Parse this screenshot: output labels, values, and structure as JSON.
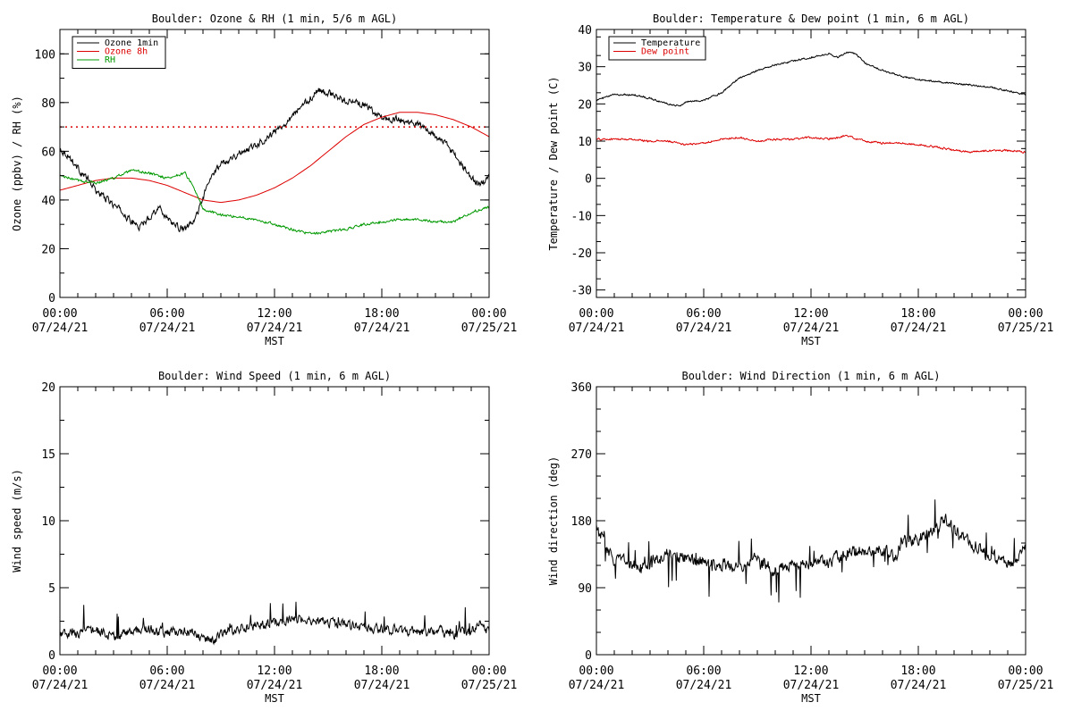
{
  "charts": [
    {
      "key": "ozone",
      "title": "Boulder: Ozone & RH (1 min, 5/6 m AGL)",
      "ylabel": "Ozone (ppbv) / RH (%)",
      "xlabel": "MST",
      "legend": [
        "Ozone 1min",
        "Ozone 8h",
        "RH"
      ]
    },
    {
      "key": "temp",
      "title": "Boulder: Temperature & Dew point (1 min, 6 m AGL)",
      "ylabel": "Temperature / Dew point (C)",
      "xlabel": "MST",
      "legend": [
        "Temperature",
        "Dew point"
      ]
    },
    {
      "key": "wspd",
      "title": "Boulder: Wind Speed (1 min, 6 m AGL)",
      "ylabel": "Wind speed (m/s)",
      "xlabel": "MST",
      "legend": []
    },
    {
      "key": "wdir",
      "title": "Boulder: Wind Direction (1 min, 6 m AGL)",
      "ylabel": "Wind direction (deg)",
      "xlabel": "MST",
      "legend": []
    }
  ],
  "chart_data": [
    {
      "type": "line",
      "title": "Boulder: Ozone & RH (1 min, 5/6 m AGL)",
      "xlabel": "MST",
      "ylabel": "Ozone (ppbv) / RH (%)",
      "xlim": [
        0,
        24
      ],
      "ylim": [
        0,
        110
      ],
      "xticks": [
        0,
        6,
        12,
        18,
        24
      ],
      "xtick_labels": [
        [
          "00:00",
          "07/24/21"
        ],
        [
          "06:00",
          "07/24/21"
        ],
        [
          "12:00",
          "07/24/21"
        ],
        [
          "18:00",
          "07/24/21"
        ],
        [
          "00:00",
          "07/25/21"
        ]
      ],
      "yticks": [
        0,
        20,
        40,
        60,
        80,
        100
      ],
      "grid": false,
      "legend_position": "top-left",
      "reference_line": {
        "y": 70,
        "color": "#dd0000",
        "style": "dotted"
      },
      "series": [
        {
          "name": "Ozone 1min",
          "color": "#000000",
          "x": [
            0,
            0.5,
            1,
            1.5,
            2,
            2.5,
            3,
            3.5,
            4,
            4.5,
            5,
            5.5,
            6,
            6.5,
            7,
            7.5,
            8,
            8.5,
            9,
            9.5,
            10,
            10.5,
            11,
            11.5,
            12,
            12.5,
            13,
            13.5,
            14,
            14.5,
            15,
            15.5,
            16,
            16.5,
            17,
            17.5,
            18,
            18.5,
            19,
            19.5,
            20,
            20.5,
            21,
            21.5,
            22,
            22.5,
            23,
            23.5,
            24
          ],
          "y": [
            61,
            58,
            53,
            49,
            44,
            41,
            38,
            35,
            31,
            29,
            33,
            37,
            33,
            29,
            28,
            31,
            41,
            50,
            55,
            57,
            59,
            61,
            63,
            65,
            68,
            71,
            75,
            78,
            82,
            85,
            84,
            82,
            81,
            80,
            79,
            76,
            74,
            73,
            73,
            72,
            71,
            69,
            66,
            64,
            59,
            54,
            49,
            46,
            49
          ]
        },
        {
          "name": "Ozone 8h",
          "color": "#dd0000",
          "x": [
            0,
            1,
            2,
            3,
            4,
            5,
            6,
            7,
            8,
            9,
            10,
            11,
            12,
            13,
            14,
            15,
            16,
            17,
            18,
            19,
            20,
            21,
            22,
            23,
            24
          ],
          "y": [
            44,
            46,
            48,
            49,
            49,
            48,
            46,
            43,
            40,
            39,
            40,
            42,
            45,
            49,
            54,
            60,
            66,
            71,
            74,
            76,
            76,
            75,
            73,
            70,
            66
          ]
        },
        {
          "name": "RH",
          "color": "#009900",
          "x": [
            0,
            1,
            2,
            3,
            4,
            5,
            6,
            7,
            7.5,
            8,
            9,
            10,
            11,
            12,
            13,
            14,
            15,
            16,
            17,
            18,
            19,
            20,
            21,
            22,
            23,
            24
          ],
          "y": [
            50,
            48,
            47,
            49,
            52,
            51,
            49,
            51,
            45,
            36,
            34,
            33,
            32,
            30,
            28,
            26,
            27,
            28,
            30,
            31,
            32,
            32,
            31,
            31,
            35,
            37
          ]
        }
      ]
    },
    {
      "type": "line",
      "title": "Boulder: Temperature & Dew point (1 min, 6 m AGL)",
      "xlabel": "MST",
      "ylabel": "Temperature / Dew point (C)",
      "xlim": [
        0,
        24
      ],
      "ylim": [
        -32,
        40
      ],
      "xticks": [
        0,
        6,
        12,
        18,
        24
      ],
      "xtick_labels": [
        [
          "00:00",
          "07/24/21"
        ],
        [
          "06:00",
          "07/24/21"
        ],
        [
          "12:00",
          "07/24/21"
        ],
        [
          "18:00",
          "07/24/21"
        ],
        [
          "00:00",
          "07/25/21"
        ]
      ],
      "yticks": [
        -30,
        -20,
        -10,
        0,
        10,
        20,
        30,
        40
      ],
      "grid": false,
      "legend_position": "top-left",
      "series": [
        {
          "name": "Temperature",
          "color": "#000000",
          "x": [
            0,
            1,
            2,
            3,
            4,
            4.7,
            5,
            6,
            7,
            8,
            9,
            10,
            11,
            12,
            13,
            13.5,
            14,
            14.5,
            15,
            16,
            17,
            18,
            19,
            20,
            21,
            22,
            23,
            24
          ],
          "y": [
            21,
            22.5,
            22.5,
            21.5,
            20,
            19.5,
            20.5,
            21,
            23,
            27,
            29,
            30.5,
            31.5,
            32.5,
            33.5,
            32.5,
            34,
            33.5,
            31,
            29,
            27.5,
            26.5,
            26,
            25.5,
            25,
            24.5,
            23.5,
            22.5
          ]
        },
        {
          "name": "Dew point",
          "color": "#dd0000",
          "x": [
            0,
            1,
            2,
            3,
            4,
            5,
            6,
            7,
            8,
            9,
            10,
            11,
            12,
            13,
            14,
            15,
            16,
            17,
            18,
            19,
            20,
            21,
            22,
            23,
            24
          ],
          "y": [
            10.5,
            10.5,
            10.5,
            10,
            10,
            9,
            9.5,
            10.5,
            11,
            10,
            10.5,
            10.5,
            11,
            10.5,
            11.5,
            10,
            9.5,
            9.5,
            9,
            8.5,
            7.5,
            7,
            7.5,
            7.5,
            7
          ]
        }
      ]
    },
    {
      "type": "line",
      "title": "Boulder: Wind Speed (1 min, 6 m AGL)",
      "xlabel": "MST",
      "ylabel": "Wind speed (m/s)",
      "xlim": [
        0,
        24
      ],
      "ylim": [
        0,
        20
      ],
      "xticks": [
        0,
        6,
        12,
        18,
        24
      ],
      "xtick_labels": [
        [
          "00:00",
          "07/24/21"
        ],
        [
          "06:00",
          "07/24/21"
        ],
        [
          "12:00",
          "07/24/21"
        ],
        [
          "18:00",
          "07/24/21"
        ],
        [
          "00:00",
          "07/25/21"
        ]
      ],
      "yticks": [
        0,
        5,
        10,
        15,
        20
      ],
      "grid": false,
      "series": [
        {
          "name": "",
          "color": "#000000",
          "x": [
            0,
            1,
            2,
            3,
            4,
            5,
            6,
            7,
            8,
            8.5,
            9,
            10,
            11,
            12,
            13,
            14,
            15,
            16,
            17,
            18,
            19,
            20,
            21,
            22,
            23,
            23.5,
            24
          ],
          "y": [
            1.6,
            1.5,
            1.8,
            1.4,
            1.7,
            1.9,
            1.6,
            1.8,
            1.2,
            1.0,
            1.6,
            2.0,
            2.2,
            2.4,
            2.6,
            2.6,
            2.4,
            2.2,
            2.0,
            1.9,
            1.8,
            1.7,
            1.8,
            1.5,
            1.8,
            2.3,
            1.6
          ]
        }
      ]
    },
    {
      "type": "line",
      "title": "Boulder: Wind Direction (1 min, 6 m AGL)",
      "xlabel": "MST",
      "ylabel": "Wind direction (deg)",
      "xlim": [
        0,
        24
      ],
      "ylim": [
        0,
        360
      ],
      "xticks": [
        0,
        6,
        12,
        18,
        24
      ],
      "xtick_labels": [
        [
          "00:00",
          "07/24/21"
        ],
        [
          "06:00",
          "07/24/21"
        ],
        [
          "12:00",
          "07/24/21"
        ],
        [
          "18:00",
          "07/24/21"
        ],
        [
          "00:00",
          "07/25/21"
        ]
      ],
      "yticks": [
        0,
        90,
        180,
        270,
        360
      ],
      "grid": false,
      "series": [
        {
          "name": "",
          "color": "#000000",
          "x": [
            0,
            0.5,
            1,
            2,
            3,
            4,
            5,
            6,
            7,
            8,
            9,
            10,
            11,
            12,
            13,
            14,
            15,
            16,
            16.7,
            17,
            18,
            19,
            19.5,
            20,
            21,
            22,
            23,
            23.5,
            24
          ],
          "y": [
            170,
            150,
            125,
            120,
            125,
            135,
            130,
            125,
            120,
            120,
            130,
            115,
            120,
            125,
            125,
            135,
            140,
            140,
            130,
            150,
            155,
            170,
            185,
            165,
            150,
            130,
            125,
            125,
            145
          ]
        }
      ]
    }
  ]
}
